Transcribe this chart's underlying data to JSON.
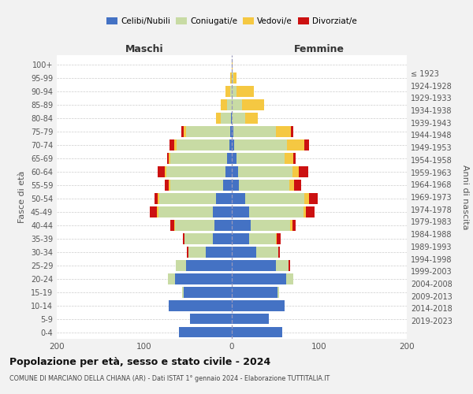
{
  "age_groups": [
    "0-4",
    "5-9",
    "10-14",
    "15-19",
    "20-24",
    "25-29",
    "30-34",
    "35-39",
    "40-44",
    "45-49",
    "50-54",
    "55-59",
    "60-64",
    "65-69",
    "70-74",
    "75-79",
    "80-84",
    "85-89",
    "90-94",
    "95-99",
    "100+"
  ],
  "birth_years": [
    "2019-2023",
    "2014-2018",
    "2009-2013",
    "2004-2008",
    "1999-2003",
    "1994-1998",
    "1989-1993",
    "1984-1988",
    "1979-1983",
    "1974-1978",
    "1969-1973",
    "1964-1968",
    "1959-1963",
    "1954-1958",
    "1949-1953",
    "1944-1948",
    "1939-1943",
    "1934-1938",
    "1929-1933",
    "1924-1928",
    "≤ 1923"
  ],
  "colors": {
    "celibi": "#4472c4",
    "coniugati": "#c8dba4",
    "vedovi": "#f5c842",
    "divorziati": "#cc1111"
  },
  "maschi": {
    "celibi": [
      60,
      48,
      72,
      55,
      65,
      52,
      30,
      22,
      20,
      22,
      18,
      10,
      7,
      5,
      3,
      2,
      1,
      0,
      0,
      0,
      0
    ],
    "coniugati": [
      0,
      0,
      0,
      2,
      8,
      12,
      20,
      32,
      45,
      62,
      65,
      60,
      68,
      65,
      60,
      50,
      12,
      5,
      2,
      0,
      0
    ],
    "vedovi": [
      0,
      0,
      0,
      0,
      0,
      0,
      0,
      0,
      1,
      2,
      2,
      2,
      2,
      2,
      3,
      3,
      5,
      8,
      5,
      2,
      0
    ],
    "divorziati": [
      0,
      0,
      0,
      0,
      0,
      0,
      1,
      2,
      4,
      8,
      3,
      5,
      8,
      2,
      5,
      3,
      0,
      0,
      0,
      0,
      0
    ]
  },
  "femmine": {
    "celibi": [
      58,
      42,
      60,
      52,
      62,
      50,
      28,
      20,
      22,
      20,
      15,
      8,
      7,
      5,
      3,
      2,
      0,
      0,
      0,
      0,
      0
    ],
    "coniugati": [
      0,
      0,
      0,
      2,
      8,
      15,
      25,
      30,
      45,
      62,
      68,
      58,
      62,
      55,
      60,
      48,
      15,
      12,
      5,
      2,
      0
    ],
    "vedovi": [
      0,
      0,
      0,
      0,
      0,
      0,
      0,
      1,
      2,
      3,
      5,
      5,
      8,
      10,
      20,
      18,
      15,
      25,
      20,
      3,
      1
    ],
    "divorziati": [
      0,
      0,
      0,
      0,
      0,
      2,
      2,
      5,
      4,
      10,
      10,
      8,
      10,
      3,
      5,
      2,
      0,
      0,
      0,
      0,
      0
    ]
  },
  "title": "Popolazione per età, sesso e stato civile - 2024",
  "subtitle": "COMUNE DI MARCIANO DELLA CHIANA (AR) - Dati ISTAT 1° gennaio 2024 - Elaborazione TUTTITALIA.IT",
  "label_maschi": "Maschi",
  "label_femmine": "Femmine",
  "ylabel_left": "Fasce di età",
  "ylabel_right": "Anni di nascita",
  "legend_labels": [
    "Celibi/Nubili",
    "Coniugati/e",
    "Vedovi/e",
    "Divorziat/e"
  ],
  "xlim": 200,
  "bg_color": "#f2f2f2",
  "plot_bg_color": "#ffffff",
  "grid_color": "#cccccc"
}
